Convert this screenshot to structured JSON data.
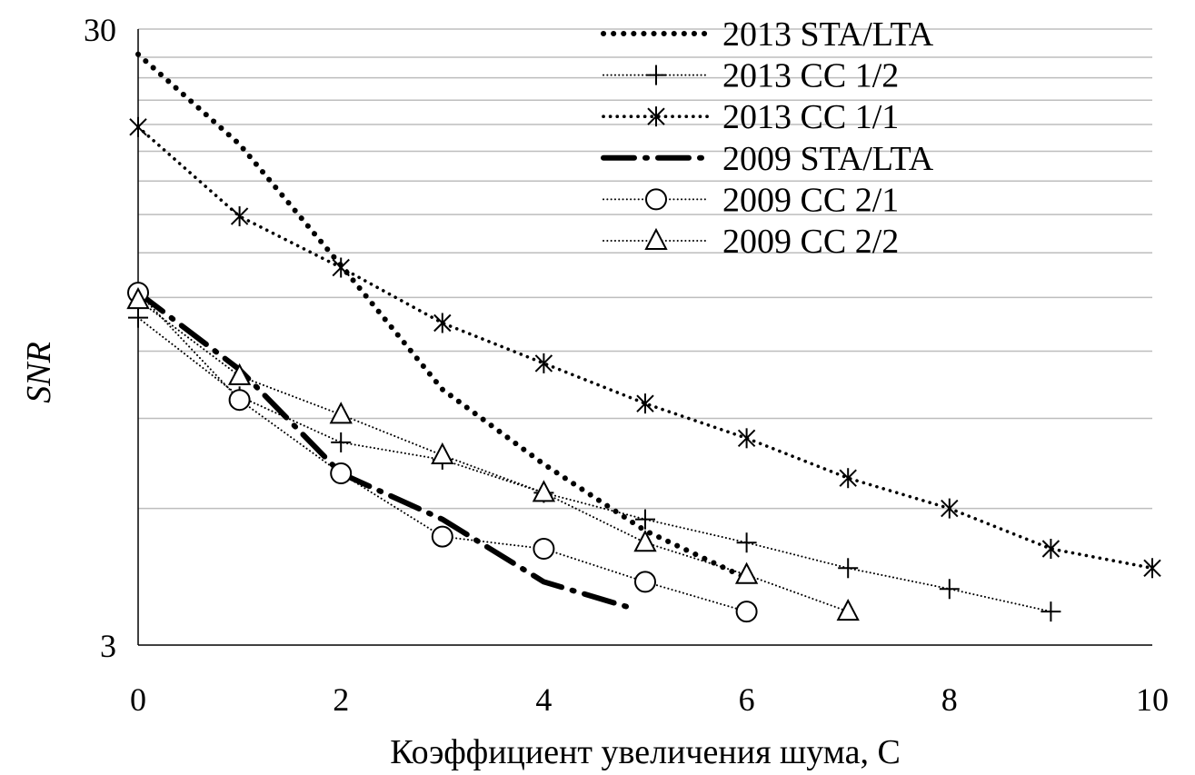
{
  "chart_data": {
    "type": "line",
    "title": "",
    "xlabel": "Коэффициент увеличения шума, C",
    "ylabel": "SNR",
    "xlim": [
      0,
      10
    ],
    "ylim": [
      3,
      30
    ],
    "y_scale": "log",
    "grid": "horizontal",
    "legend_position": "top-right",
    "x_ticks": [
      "0",
      "2",
      "4",
      "6",
      "8",
      "10"
    ],
    "x_tick_values": [
      0,
      2,
      4,
      6,
      8,
      10
    ],
    "y_ticks": [
      "3",
      "30"
    ],
    "y_tick_values": [
      3,
      30
    ],
    "y_gridlines": [
      3,
      5,
      7,
      9,
      11,
      13,
      15,
      17,
      19,
      21,
      23,
      25,
      27,
      30
    ],
    "series": [
      {
        "name": "2013 STA/LTA",
        "style": "dense-dot",
        "marker": "none",
        "x": [
          0,
          1,
          2,
          3,
          4,
          5,
          6
        ],
        "y": [
          27.3,
          19.5,
          12.4,
          7.8,
          5.9,
          4.6,
          3.85
        ]
      },
      {
        "name": "2013 CC 1/2",
        "style": "fine-dot",
        "marker": "plus",
        "x": [
          0,
          1,
          2,
          3,
          4,
          5,
          6,
          7,
          8,
          9
        ],
        "y": [
          10.2,
          7.6,
          6.4,
          6.0,
          5.3,
          4.8,
          4.4,
          4.0,
          3.7,
          3.4
        ]
      },
      {
        "name": "2013 CC 1/1",
        "style": "dot",
        "marker": "asterisk",
        "x": [
          0,
          1,
          2,
          3,
          4,
          5,
          6,
          7,
          8,
          9,
          10
        ],
        "y": [
          20.8,
          14.9,
          12.3,
          10.0,
          8.6,
          7.4,
          6.5,
          5.6,
          5.0,
          4.3,
          4.0
        ]
      },
      {
        "name": "2009 STA/LTA",
        "style": "dash-dot",
        "marker": "none",
        "x": [
          0,
          1,
          2,
          3,
          4,
          4.85
        ],
        "y": [
          11.2,
          8.4,
          5.7,
          4.8,
          3.8,
          3.45
        ]
      },
      {
        "name": "2009 CC 2/1",
        "style": "fine-dot",
        "marker": "circle",
        "x": [
          0,
          1,
          2,
          3,
          4,
          5,
          6
        ],
        "y": [
          11.2,
          7.5,
          5.7,
          4.5,
          4.3,
          3.8,
          3.4
        ]
      },
      {
        "name": "2009 CC 2/2",
        "style": "fine-dot",
        "marker": "triangle",
        "x": [
          0,
          1,
          2,
          3,
          4,
          5,
          6,
          7
        ],
        "y": [
          10.9,
          8.2,
          7.1,
          6.1,
          5.3,
          4.4,
          3.9,
          3.4
        ]
      }
    ]
  }
}
